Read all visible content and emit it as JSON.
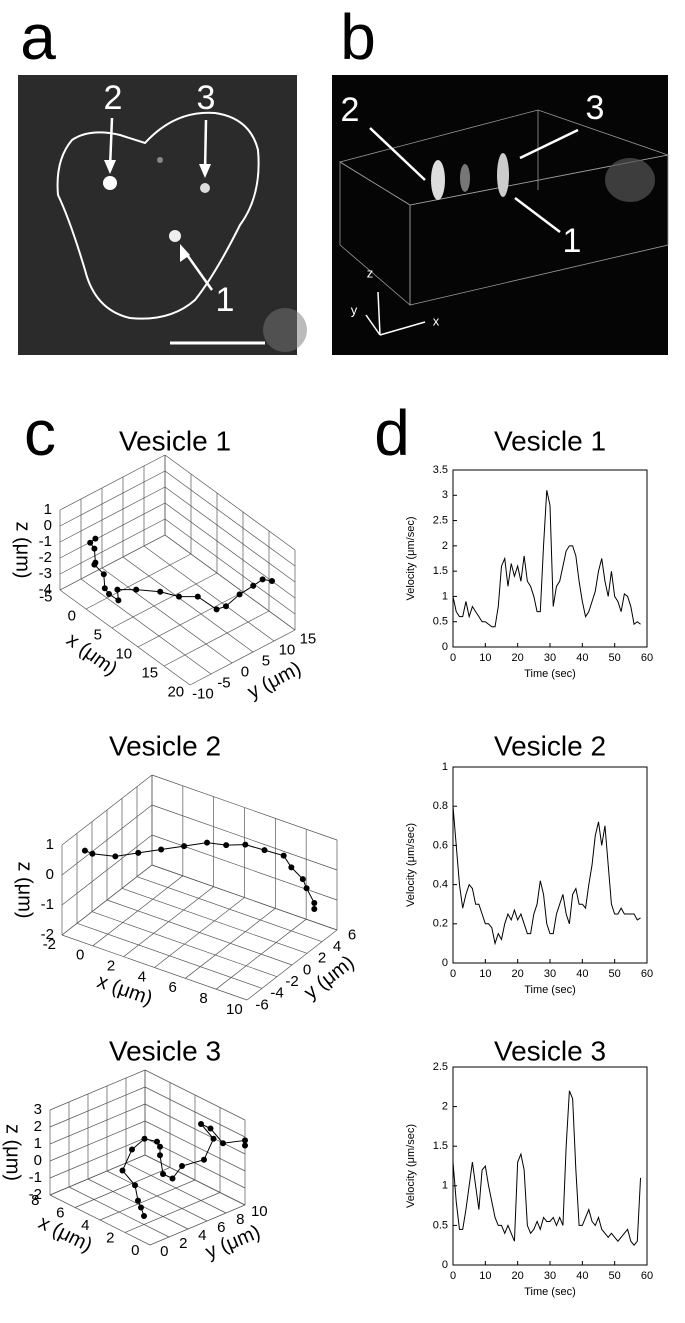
{
  "panel_labels": [
    "a",
    "b",
    "c",
    "d"
  ],
  "image_a": {
    "labels": [
      "2",
      "3",
      "1"
    ]
  },
  "image_b": {
    "labels": [
      "2",
      "3",
      "1"
    ],
    "axes": [
      "z",
      "y",
      "x"
    ]
  },
  "chart_data": [
    {
      "type": "scatter3d",
      "title": "Vesicle 1",
      "xlabel": "x (μm)",
      "ylabel": "y (μm)",
      "zlabel": "z (μm)",
      "color": "#000000",
      "xlim": [
        -5,
        20
      ],
      "ylim": [
        -10,
        15
      ],
      "zlim": [
        -4,
        1
      ],
      "xticks": [
        -5,
        0,
        5,
        10,
        15,
        20
      ],
      "yticks": [
        -10,
        -5,
        0,
        5,
        10,
        15
      ],
      "zticks": [
        -4,
        -3,
        -2,
        -1,
        0,
        1
      ],
      "x": [
        1,
        0,
        0,
        1,
        0,
        1,
        2,
        2,
        3,
        2,
        4,
        7,
        9,
        11,
        13,
        14,
        15,
        16,
        17,
        18
      ],
      "y": [
        -9,
        -9,
        -8,
        -9,
        -8,
        -7,
        -8,
        -7,
        -6,
        -5,
        -3,
        -1,
        1,
        3,
        5,
        6,
        8,
        10,
        11,
        12
      ],
      "z": [
        0.5,
        0,
        -0.5,
        -1,
        -1.5,
        -2,
        -2.5,
        -3,
        -3.3,
        -3,
        -2.8,
        -2.5,
        -2.6,
        -2.4,
        -3,
        -2.7,
        -2,
        -1.5,
        -1,
        -1
      ]
    },
    {
      "type": "scatter3d",
      "title": "Vesicle 2",
      "xlabel": "x (μm)",
      "ylabel": "y (μm)",
      "zlabel": "z (μm)",
      "color": "#000000",
      "xlim": [
        -2,
        10
      ],
      "ylim": [
        -6,
        6
      ],
      "zlim": [
        -2,
        1
      ],
      "xticks": [
        -2,
        0,
        2,
        4,
        6,
        8,
        10
      ],
      "yticks": [
        -6,
        -4,
        -2,
        0,
        2,
        4,
        6
      ],
      "zticks": [
        -2,
        -1,
        0,
        1
      ],
      "x": [
        -1,
        -1,
        0,
        1,
        2,
        3,
        4,
        5,
        6,
        7,
        8,
        8.5,
        9,
        9,
        9.5,
        9.5
      ],
      "y": [
        -5,
        -4,
        -3,
        -2,
        -1,
        0,
        1,
        1.5,
        2,
        2.5,
        3,
        3,
        3.5,
        4,
        4,
        4
      ],
      "z": [
        0.8,
        0.5,
        0.4,
        0.5,
        0.6,
        0.7,
        0.8,
        0.8,
        0.9,
        0.8,
        0.7,
        0.4,
        0,
        -0.4,
        -0.8,
        -1
      ]
    },
    {
      "type": "scatter3d",
      "title": "Vesicle 3",
      "xlabel": "x (μm)",
      "ylabel": "y (μm)",
      "zlabel": "z (μm)",
      "color": "#000000",
      "xlim": [
        0,
        8
      ],
      "ylim": [
        0,
        10
      ],
      "zlim": [
        -2,
        3
      ],
      "xticks": [
        0,
        2,
        4,
        6,
        8
      ],
      "yticks": [
        0,
        2,
        4,
        6,
        8,
        10
      ],
      "zticks": [
        -2,
        -1,
        0,
        1,
        2,
        3
      ],
      "x": [
        2,
        3,
        4,
        5,
        6,
        6,
        5,
        4,
        3,
        3,
        2,
        2,
        2,
        1,
        1,
        2,
        2,
        1,
        0,
        0
      ],
      "y": [
        2,
        3,
        4,
        5,
        5,
        6,
        6,
        6,
        5,
        5,
        4,
        5,
        6,
        7,
        8,
        8,
        9,
        9,
        10,
        10
      ],
      "z": [
        -1.5,
        -1.6,
        -1.8,
        -1.5,
        -1,
        0,
        1,
        1.2,
        1.5,
        1,
        0.5,
        0,
        0.5,
        1,
        2,
        2.5,
        2,
        1.5,
        1.8,
        1.5
      ]
    },
    {
      "type": "line",
      "title": "Vesicle 1",
      "xlabel": "Time (sec)",
      "ylabel": "Velocity (μm/sec)",
      "color": "#000000",
      "xlim": [
        0,
        60
      ],
      "ylim": [
        0,
        3.5
      ],
      "xticks": [
        0,
        10,
        20,
        30,
        40,
        50,
        60
      ],
      "yticks": [
        0,
        0.5,
        1,
        1.5,
        2,
        2.5,
        3,
        3.5
      ],
      "x": [
        0,
        1,
        2,
        3,
        4,
        5,
        6,
        7,
        8,
        9,
        10,
        11,
        12,
        13,
        14,
        15,
        16,
        17,
        18,
        19,
        20,
        21,
        22,
        23,
        24,
        25,
        26,
        27,
        28,
        29,
        30,
        31,
        32,
        33,
        34,
        35,
        36,
        37,
        38,
        39,
        40,
        41,
        42,
        43,
        44,
        45,
        46,
        47,
        48,
        49,
        50,
        51,
        52,
        53,
        54,
        55,
        56,
        57,
        58
      ],
      "values": [
        1.0,
        0.7,
        0.6,
        0.6,
        0.9,
        0.6,
        0.8,
        0.7,
        0.6,
        0.5,
        0.5,
        0.45,
        0.4,
        0.4,
        0.8,
        1.6,
        1.75,
        1.2,
        1.65,
        1.4,
        1.6,
        1.3,
        1.8,
        1.3,
        1.2,
        1.0,
        0.7,
        0.7,
        2.0,
        3.1,
        2.8,
        0.8,
        1.2,
        1.3,
        1.6,
        1.9,
        2.0,
        2.0,
        1.8,
        1.3,
        0.9,
        0.6,
        0.7,
        0.9,
        1.1,
        1.5,
        1.75,
        1.3,
        1.0,
        1.5,
        1.0,
        0.9,
        0.7,
        1.05,
        1.0,
        0.8,
        0.45,
        0.5,
        0.45
      ]
    },
    {
      "type": "line",
      "title": "Vesicle 2",
      "xlabel": "Time (sec)",
      "ylabel": "Velocity (μm/sec)",
      "color": "#000000",
      "xlim": [
        0,
        60
      ],
      "ylim": [
        0,
        1
      ],
      "xticks": [
        0,
        10,
        20,
        30,
        40,
        50,
        60
      ],
      "yticks": [
        0,
        0.2,
        0.4,
        0.6,
        0.8,
        1
      ],
      "x": [
        0,
        1,
        2,
        3,
        4,
        5,
        6,
        7,
        8,
        9,
        10,
        11,
        12,
        13,
        14,
        15,
        16,
        17,
        18,
        19,
        20,
        21,
        22,
        23,
        24,
        25,
        26,
        27,
        28,
        29,
        30,
        31,
        32,
        33,
        34,
        35,
        36,
        37,
        38,
        39,
        40,
        41,
        42,
        43,
        44,
        45,
        46,
        47,
        48,
        49,
        50,
        51,
        52,
        53,
        54,
        55,
        56,
        57,
        58
      ],
      "values": [
        0.8,
        0.6,
        0.4,
        0.28,
        0.35,
        0.4,
        0.38,
        0.3,
        0.3,
        0.25,
        0.2,
        0.2,
        0.18,
        0.1,
        0.15,
        0.12,
        0.2,
        0.25,
        0.22,
        0.27,
        0.22,
        0.25,
        0.2,
        0.15,
        0.15,
        0.25,
        0.3,
        0.42,
        0.35,
        0.2,
        0.15,
        0.15,
        0.25,
        0.3,
        0.35,
        0.25,
        0.2,
        0.35,
        0.38,
        0.3,
        0.3,
        0.28,
        0.4,
        0.5,
        0.65,
        0.72,
        0.6,
        0.7,
        0.5,
        0.3,
        0.25,
        0.25,
        0.28,
        0.25,
        0.25,
        0.25,
        0.25,
        0.22,
        0.23
      ]
    },
    {
      "type": "line",
      "title": "Vesicle 3",
      "xlabel": "Time (sec)",
      "ylabel": "Velocity (μm/sec)",
      "color": "#000000",
      "xlim": [
        0,
        60
      ],
      "ylim": [
        0,
        2.5
      ],
      "xticks": [
        0,
        10,
        20,
        30,
        40,
        50,
        60
      ],
      "yticks": [
        0,
        0.5,
        1,
        1.5,
        2,
        2.5
      ],
      "x": [
        0,
        1,
        2,
        3,
        4,
        5,
        6,
        7,
        8,
        9,
        10,
        11,
        12,
        13,
        14,
        15,
        16,
        17,
        18,
        19,
        20,
        21,
        22,
        23,
        24,
        25,
        26,
        27,
        28,
        29,
        30,
        31,
        32,
        33,
        34,
        35,
        36,
        37,
        38,
        39,
        40,
        41,
        42,
        43,
        44,
        45,
        46,
        47,
        48,
        49,
        50,
        51,
        52,
        53,
        54,
        55,
        56,
        57,
        58
      ],
      "values": [
        1.3,
        0.8,
        0.45,
        0.45,
        0.7,
        1.0,
        1.3,
        1.0,
        0.7,
        1.2,
        1.25,
        1.0,
        0.8,
        0.6,
        0.5,
        0.5,
        0.4,
        0.5,
        0.4,
        0.3,
        1.3,
        1.4,
        1.2,
        0.5,
        0.4,
        0.45,
        0.55,
        0.45,
        0.6,
        0.55,
        0.55,
        0.6,
        0.5,
        0.6,
        0.5,
        1.5,
        2.2,
        2.1,
        1.2,
        0.5,
        0.5,
        0.6,
        0.7,
        0.55,
        0.5,
        0.6,
        0.45,
        0.4,
        0.35,
        0.4,
        0.35,
        0.3,
        0.35,
        0.4,
        0.45,
        0.3,
        0.25,
        0.3,
        1.1
      ]
    }
  ]
}
